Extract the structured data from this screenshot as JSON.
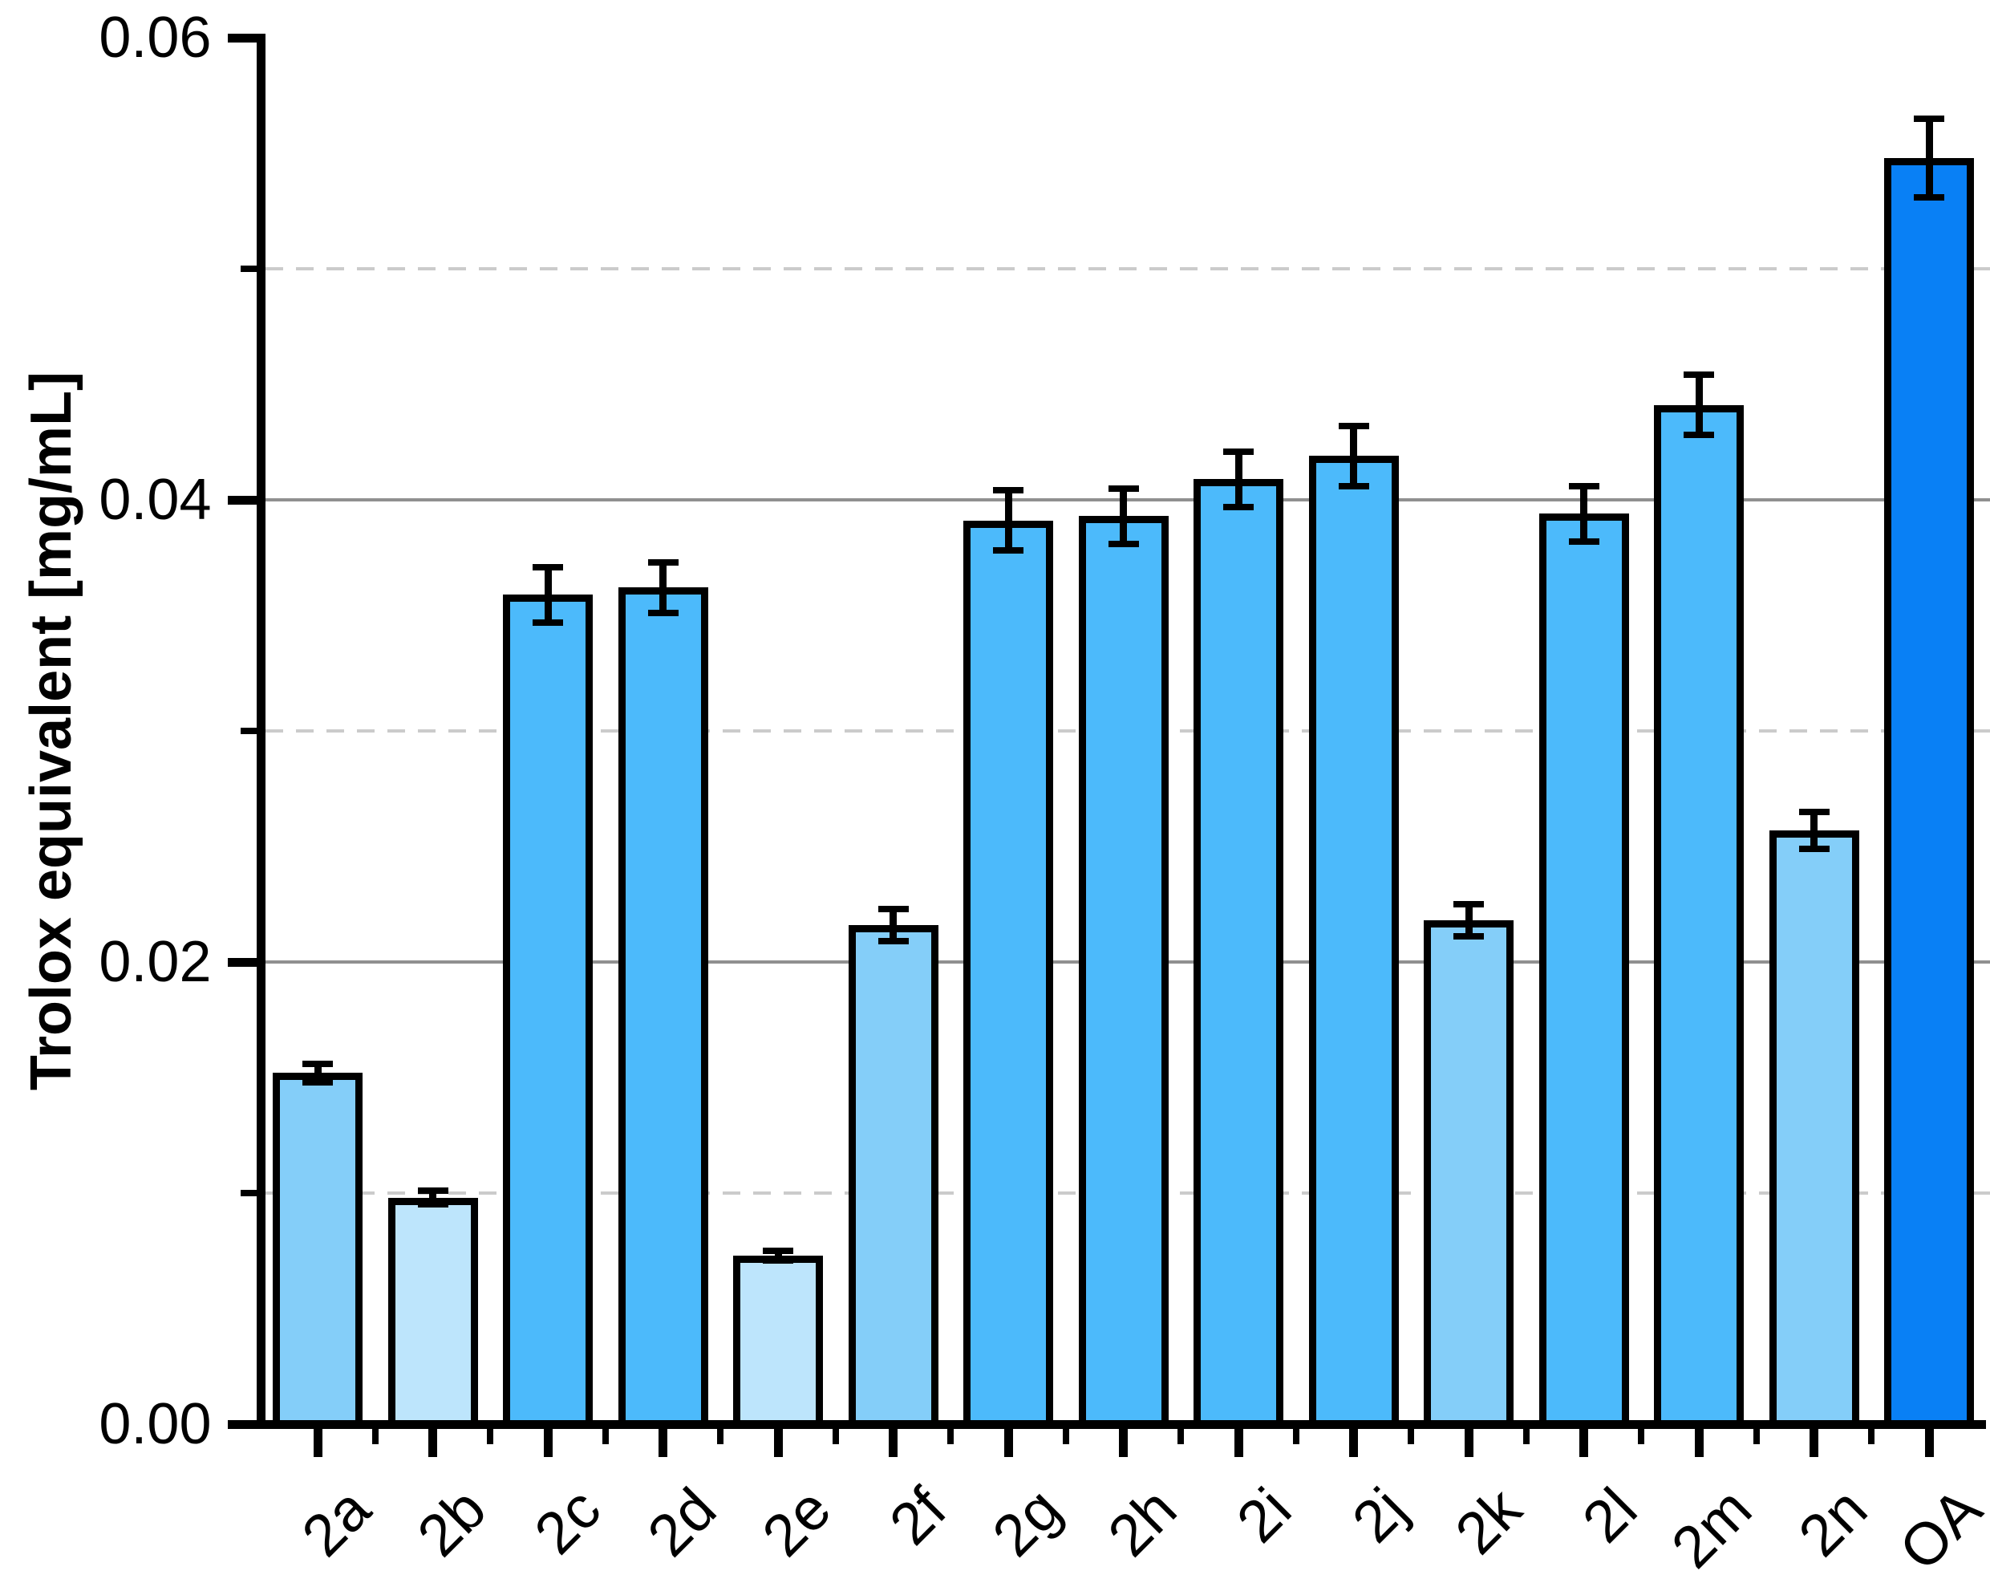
{
  "chart_data": {
    "type": "bar",
    "title": "",
    "xlabel": "",
    "ylabel": "Trolox equivalent [mg/mL]",
    "ylim": [
      0.0,
      0.06
    ],
    "legend": "none",
    "grid": {
      "solid_at": [
        0.02,
        0.04
      ],
      "dashed_at": [
        0.01,
        0.03,
        0.05
      ]
    },
    "yticks_major": [
      {
        "value": 0.0,
        "label": "0.00"
      },
      {
        "value": 0.02,
        "label": "0.02"
      },
      {
        "value": 0.04,
        "label": "0.04"
      },
      {
        "value": 0.06,
        "label": "0.06"
      }
    ],
    "yticks_minor": [
      0.01,
      0.03,
      0.05
    ],
    "categories": [
      "2a",
      "2b",
      "2c",
      "2d",
      "2e",
      "2f",
      "2g",
      "2h",
      "2i",
      "2j",
      "2k",
      "2l",
      "2m",
      "2n",
      "OA"
    ],
    "values": [
      0.0152,
      0.0098,
      0.0359,
      0.0362,
      0.0073,
      0.0216,
      0.0391,
      0.0393,
      0.0409,
      0.0419,
      0.0218,
      0.0394,
      0.0441,
      0.0257,
      0.0548
    ],
    "errors": [
      0.0004,
      0.0003,
      0.0012,
      0.0011,
      0.0002,
      0.0007,
      0.0013,
      0.0012,
      0.0012,
      0.0013,
      0.0007,
      0.0012,
      0.0013,
      0.0008,
      0.0017
    ],
    "bar_colors": [
      "#84CEF9",
      "#BDE5FC",
      "#4CBAFB",
      "#4CBAFB",
      "#BDE5FC",
      "#84CEF9",
      "#4CBAFB",
      "#4CBAFB",
      "#4CBAFB",
      "#4CBAFB",
      "#84CEF9",
      "#4CBAFB",
      "#4CBAFB",
      "#84CEF9",
      "#0980F5"
    ],
    "colors": {
      "bar_vivid_blue": "#4CBAFB",
      "bar_medium_light_blue": "#84CEF9",
      "bar_pale_blue": "#BDE5FC",
      "bar_dark_blue": "#0980F5",
      "bar_outline": "#000000",
      "axis": "#000000",
      "grid_solid": "#909090",
      "grid_dashed": "#cbcbcb"
    }
  }
}
